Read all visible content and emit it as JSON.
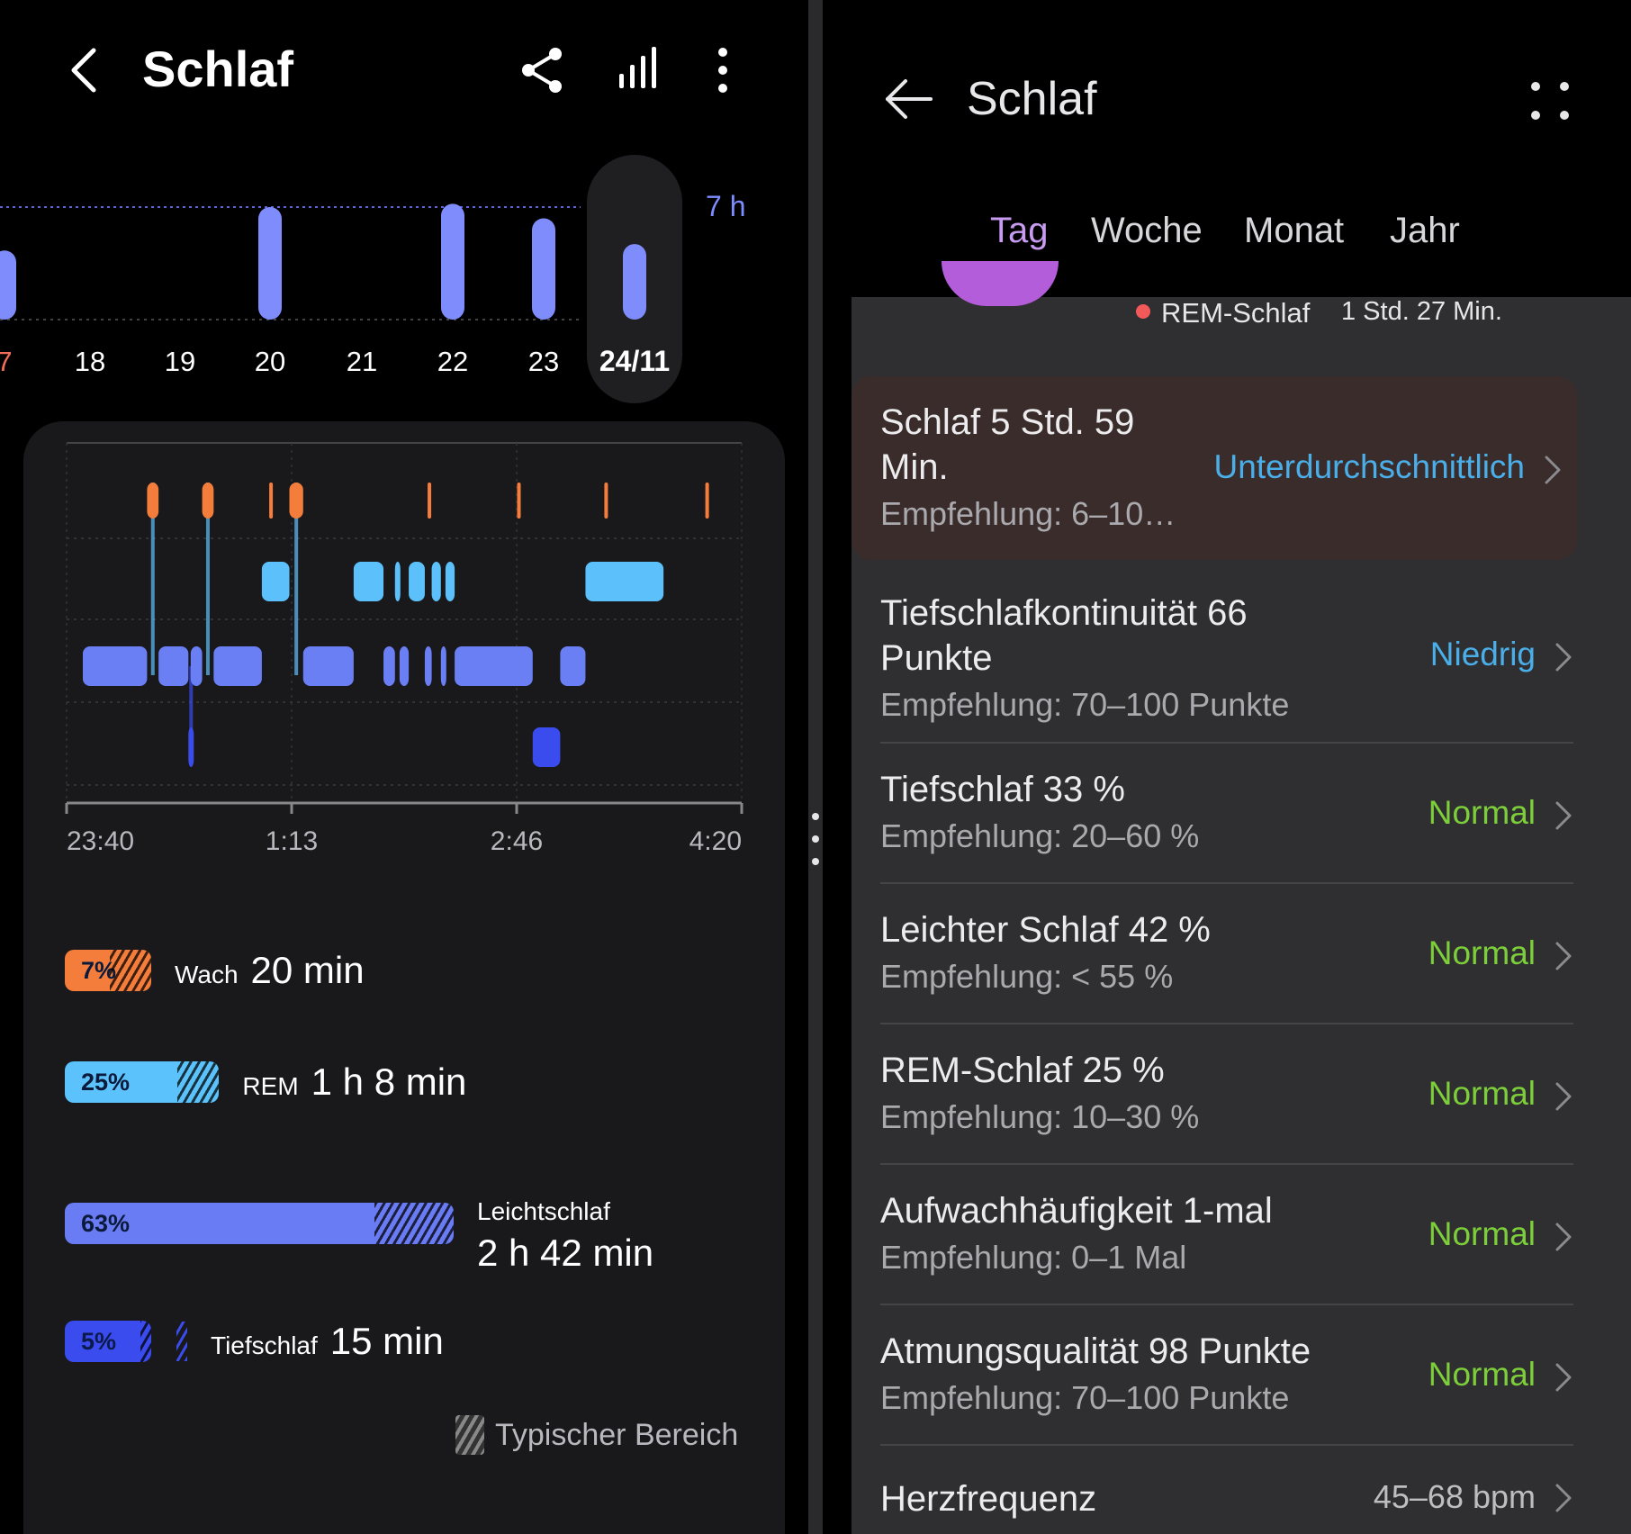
{
  "left": {
    "header": {
      "title": "Schlaf"
    },
    "week": {
      "goal_label": "7 h",
      "days": [
        {
          "label": "7",
          "value": 4.3,
          "color": "#f26d5b"
        },
        {
          "label": "18",
          "value": null
        },
        {
          "label": "19",
          "value": null
        },
        {
          "label": "20",
          "value": 7.0
        },
        {
          "label": "21",
          "value": null
        },
        {
          "label": "22",
          "value": 7.2
        },
        {
          "label": "23",
          "value": 6.3
        },
        {
          "label": "24/11",
          "value": 4.7,
          "selected": true
        }
      ]
    },
    "hypnogram": {
      "x_ticks": [
        "23:40",
        "1:13",
        "2:46",
        "4:20"
      ],
      "start_min": 0,
      "end_min": 280,
      "stages": [
        {
          "stage": "light",
          "from": 0,
          "to": 28
        },
        {
          "stage": "awake",
          "from": 28,
          "to": 33
        },
        {
          "stage": "light",
          "from": 33,
          "to": 46
        },
        {
          "stage": "deep",
          "from": 46,
          "to": 47
        },
        {
          "stage": "light",
          "from": 47,
          "to": 52
        },
        {
          "stage": "awake",
          "from": 52,
          "to": 57
        },
        {
          "stage": "light",
          "from": 57,
          "to": 78
        },
        {
          "stage": "rem",
          "from": 78,
          "to": 90
        },
        {
          "stage": "awake",
          "from": 90,
          "to": 96
        },
        {
          "stage": "light",
          "from": 96,
          "to": 118
        },
        {
          "stage": "rem",
          "from": 118,
          "to": 131
        },
        {
          "stage": "light",
          "from": 131,
          "to": 136
        },
        {
          "stage": "rem",
          "from": 136,
          "to": 138
        },
        {
          "stage": "light",
          "from": 138,
          "to": 142
        },
        {
          "stage": "rem",
          "from": 142,
          "to": 149
        },
        {
          "stage": "light",
          "from": 149,
          "to": 152
        },
        {
          "stage": "rem",
          "from": 152,
          "to": 156
        },
        {
          "stage": "light",
          "from": 156,
          "to": 158
        },
        {
          "stage": "rem",
          "from": 158,
          "to": 162
        },
        {
          "stage": "light",
          "from": 162,
          "to": 196
        },
        {
          "stage": "deep",
          "from": 196,
          "to": 208
        },
        {
          "stage": "light",
          "from": 208,
          "to": 219
        },
        {
          "stage": "rem",
          "from": 219,
          "to": 253
        }
      ],
      "awake_ticks": [
        82,
        151,
        190,
        228,
        272
      ]
    },
    "legend": [
      {
        "pct": "7%",
        "label": "Wach",
        "value": "20 min",
        "color": "#f47d3c",
        "fill": 0.07
      },
      {
        "pct": "25%",
        "label": "REM",
        "value": "1 h 8 min",
        "color": "#5bc2fb",
        "fill": 0.25
      },
      {
        "pct": "63%",
        "label": "Leichtschlaf",
        "value": "2 h 42 min",
        "color": "#6a7cf4",
        "fill": 0.63
      },
      {
        "pct": "5%",
        "label": "Tiefschlaf",
        "value": "15 min",
        "color": "#3a4cee",
        "fill": 0.05
      }
    ],
    "typical_range": "Typischer Bereich"
  },
  "right": {
    "header": {
      "title": "Schlaf"
    },
    "tabs": [
      "Tag",
      "Woche",
      "Monat",
      "Jahr"
    ],
    "active_tab": "Tag",
    "rem_line": {
      "label": "REM-Schlaf",
      "value": "1 Std. 27 Min."
    },
    "metrics": [
      {
        "title": "Schlaf  5 Std. 59",
        "title2": "Min.",
        "rec": "Empfehlung: 6–10…",
        "status": "Unterdurchschnittlich",
        "status_color": "blue",
        "highlight": true
      },
      {
        "title": "Tiefschlafkontinuität  66",
        "title2": "Punkte",
        "rec": "Empfehlung: 70–100 Punkte",
        "status": "Niedrig",
        "status_color": "blue"
      },
      {
        "title": "Tiefschlaf  33 %",
        "rec": "Empfehlung: 20–60 %",
        "status": "Normal",
        "status_color": "green"
      },
      {
        "title": "Leichter Schlaf  42 %",
        "rec": "Empfehlung: < 55 %",
        "status": "Normal",
        "status_color": "green"
      },
      {
        "title": "REM-Schlaf  25 %",
        "rec": "Empfehlung: 10–30 %",
        "status": "Normal",
        "status_color": "green"
      },
      {
        "title": "Aufwachhäufigkeit  1-mal",
        "rec": "Empfehlung: 0–1 Mal",
        "status": "Normal",
        "status_color": "green"
      },
      {
        "title": "Atmungsqualität  98 Punkte",
        "rec": "Empfehlung: 70–100 Punkte",
        "status": "Normal",
        "status_color": "green"
      },
      {
        "title": "Herzfrequenz",
        "status": "45–68 bpm",
        "status_color": "gray"
      }
    ]
  }
}
